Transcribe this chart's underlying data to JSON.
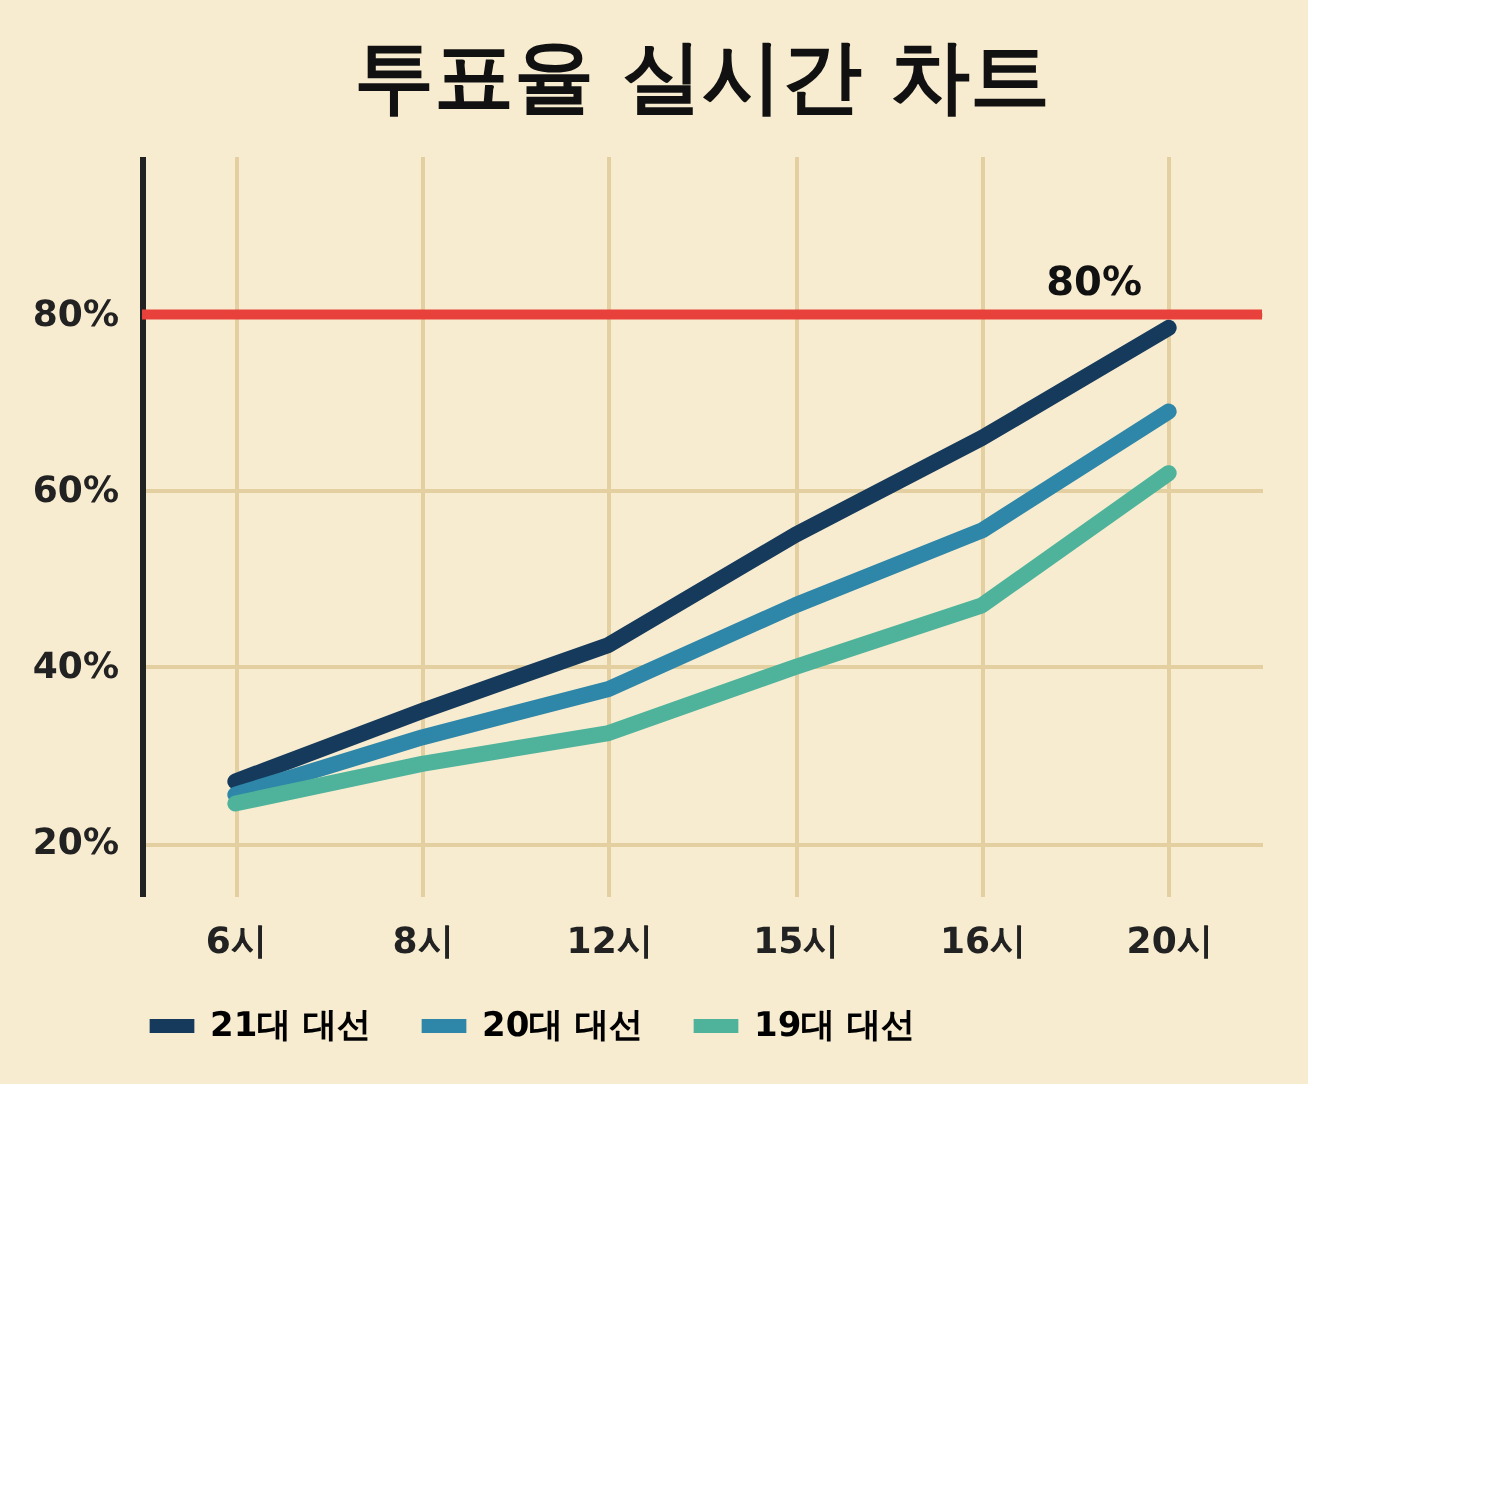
{
  "chart_data": {
    "type": "line",
    "title": "투표율 실시간 차트",
    "categories": [
      "6시",
      "8시",
      "12시",
      "15시",
      "16시",
      "20시"
    ],
    "series": [
      {
        "name": "21대 대선",
        "color": "#163a5c",
        "values": [
          27,
          35,
          42.5,
          55,
          66,
          78.5
        ]
      },
      {
        "name": "20대 대선",
        "color": "#2e86a8",
        "values": [
          25.5,
          32,
          37.5,
          47,
          55.5,
          69
        ]
      },
      {
        "name": "19대 대선",
        "color": "#4fb39c",
        "values": [
          24.5,
          29,
          32.5,
          40,
          47,
          62
        ]
      }
    ],
    "ylim": [
      14,
      98
    ],
    "yticks": [
      {
        "value": 20,
        "label": "20%"
      },
      {
        "value": 40,
        "label": "40%"
      },
      {
        "value": 60,
        "label": "60%"
      },
      {
        "value": 80,
        "label": "80%"
      }
    ],
    "ref_lines": [
      {
        "axis": "y",
        "value": 80,
        "label": "80%",
        "color": "#e8403a"
      }
    ],
    "grid": true,
    "legend": "bottom",
    "line_style": "solid",
    "marker": "none"
  }
}
